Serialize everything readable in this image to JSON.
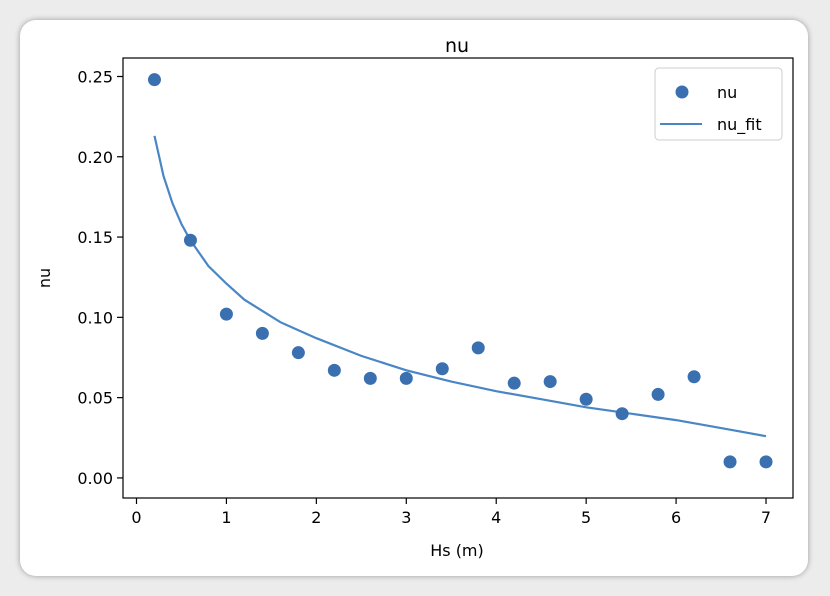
{
  "chart_data": {
    "type": "scatter",
    "title": "nu",
    "xlabel": "Hs (m)",
    "ylabel": "nu",
    "xlim": [
      -0.15,
      7.3
    ],
    "ylim": [
      -0.0125,
      0.2615
    ],
    "xticks": [
      0,
      1,
      2,
      3,
      4,
      5,
      6,
      7
    ],
    "xtick_labels": [
      "0",
      "1",
      "2",
      "3",
      "4",
      "5",
      "6",
      "7"
    ],
    "yticks": [
      0.0,
      0.05,
      0.1,
      0.15,
      0.2,
      0.25
    ],
    "ytick_labels": [
      "0.00",
      "0.05",
      "0.10",
      "0.15",
      "0.20",
      "0.25"
    ],
    "grid": false,
    "legend": "top-right",
    "series": [
      {
        "name": "nu",
        "kind": "scatter",
        "color": "#3a6fb0",
        "x": [
          0.2,
          0.6,
          1.0,
          1.4,
          1.8,
          2.2,
          2.6,
          3.0,
          3.4,
          3.8,
          4.2,
          4.6,
          5.0,
          5.4,
          5.8,
          6.2,
          6.6,
          7.0
        ],
        "y": [
          0.248,
          0.148,
          0.102,
          0.09,
          0.078,
          0.067,
          0.062,
          0.062,
          0.068,
          0.081,
          0.059,
          0.06,
          0.049,
          0.04,
          0.052,
          0.063,
          0.01,
          0.01
        ]
      },
      {
        "name": "nu_fit",
        "kind": "line",
        "color": "#4a86c5",
        "x": [
          0.2,
          0.3,
          0.4,
          0.5,
          0.6,
          0.8,
          1.0,
          1.2,
          1.4,
          1.6,
          1.8,
          2.0,
          2.5,
          3.0,
          3.5,
          4.0,
          4.5,
          5.0,
          5.5,
          6.0,
          6.5,
          7.0
        ],
        "y": [
          0.213,
          0.188,
          0.171,
          0.158,
          0.148,
          0.132,
          0.121,
          0.111,
          0.104,
          0.097,
          0.092,
          0.087,
          0.076,
          0.067,
          0.06,
          0.054,
          0.049,
          0.044,
          0.04,
          0.036,
          0.031,
          0.026
        ]
      }
    ]
  }
}
